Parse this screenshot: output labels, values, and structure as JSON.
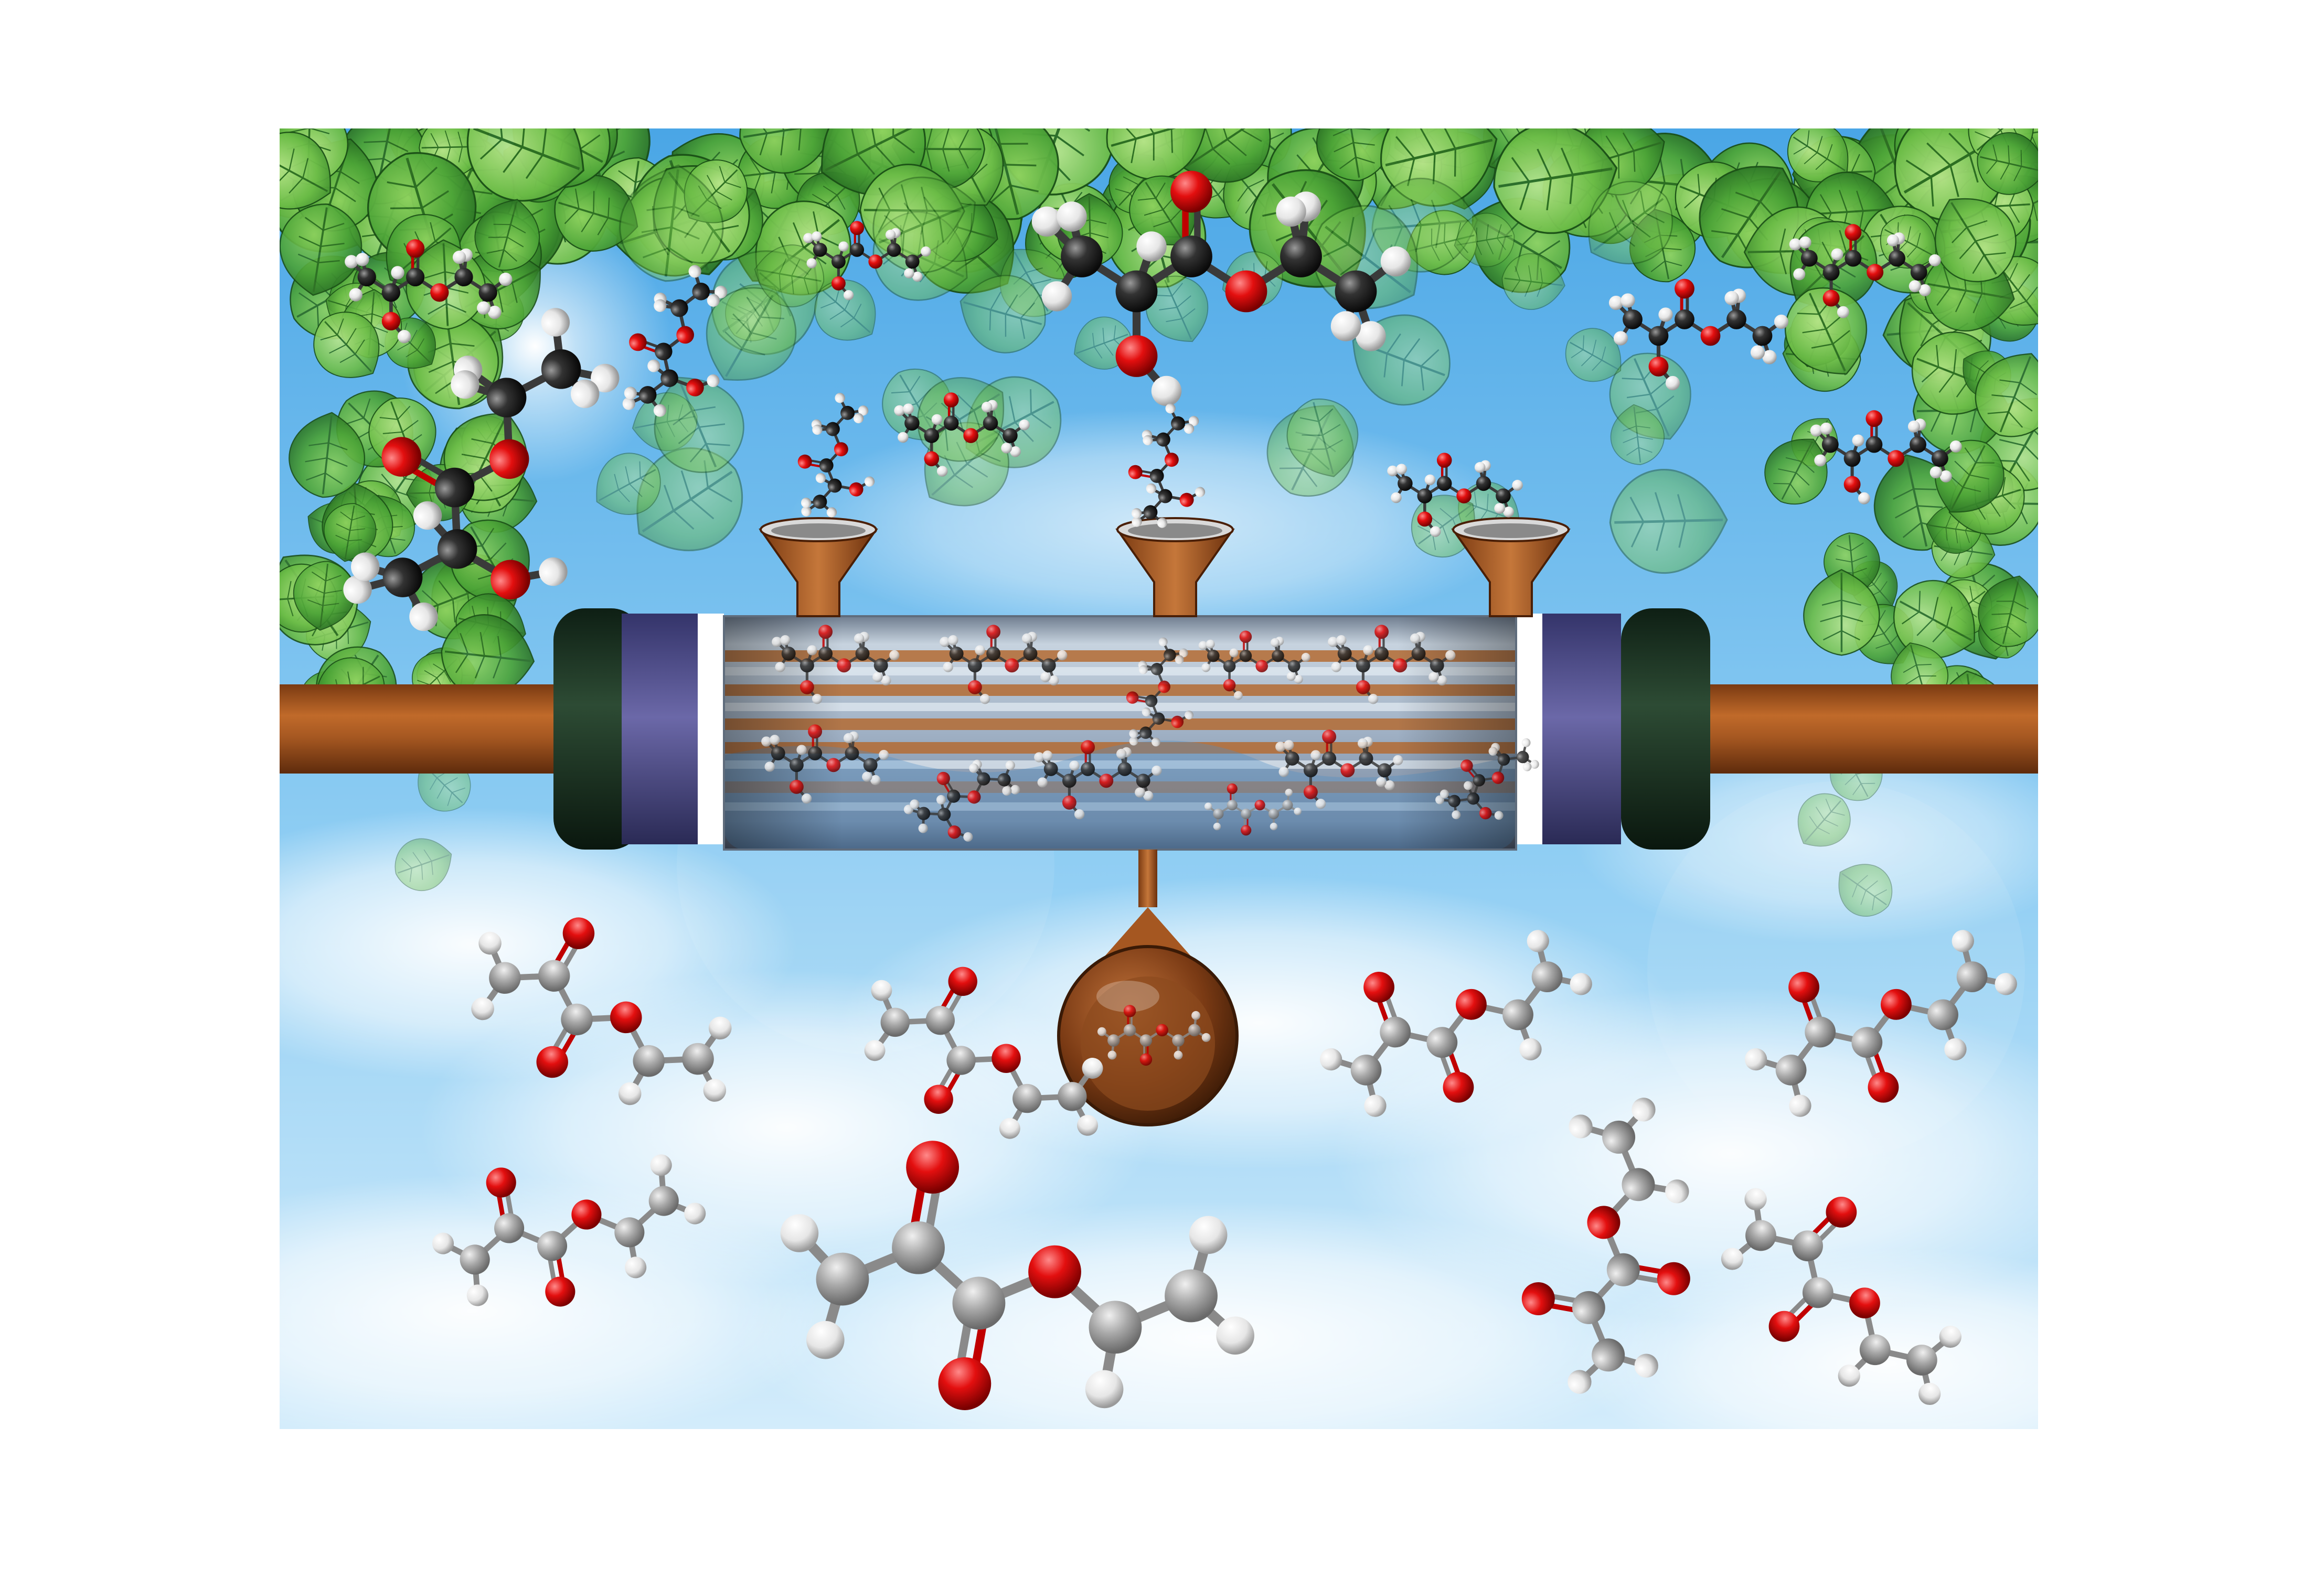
{
  "palette": {
    "background": "#ffffff",
    "sky_top": "#5fb3ea",
    "sky_bottom": "#cfe9fa",
    "leaf_dark": "#1f6b22",
    "leaf_mid": "#3d9a2e",
    "leaf_light": "#8cd164",
    "pipe": "#a85a22",
    "pipe_dark": "#6e3512",
    "cap_dark": "#152a1c",
    "cap_violet": "#4b4a86",
    "ring": "#ffffff",
    "tube_glass": "#c9d7e4",
    "carbon": "#2a2a2a",
    "carbon_light": "#9a9a9a",
    "oxygen": "#e00d0d",
    "hydrogen": "#ffffff"
  },
  "scene": {
    "subject": "membrane-reactor-illustration",
    "molecule_reactant": "ethyl-lactate",
    "molecule_product": "ethyl-pyruvate"
  }
}
